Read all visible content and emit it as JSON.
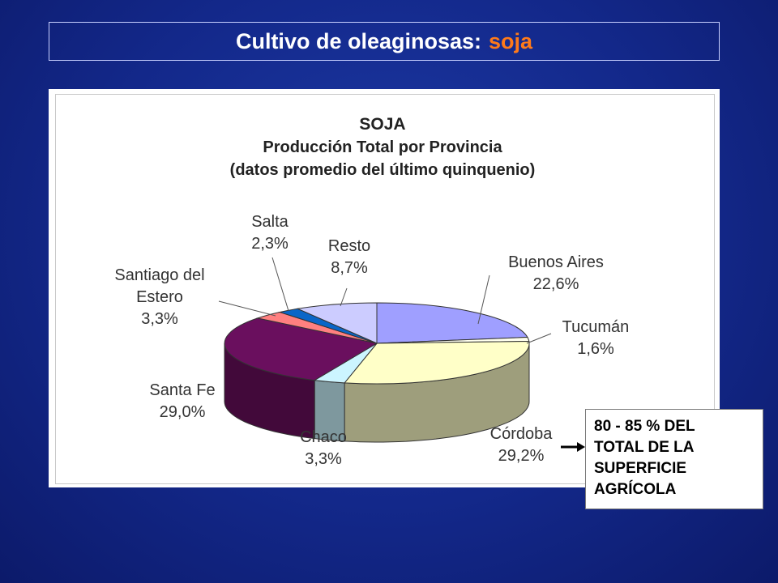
{
  "slide": {
    "title_main": "Cultivo de oleaginosas:",
    "title_accent": "soja",
    "accent_color": "#ff7a1a"
  },
  "chart_data": {
    "type": "pie",
    "title": "SOJA",
    "subtitle": "Producción Total por Provincia",
    "subtitle2": "(datos promedio del último quinquenio)",
    "slices": [
      {
        "label": "Buenos Aires",
        "value": 22.6,
        "value_label": "22,6%",
        "color": "#9f9fff"
      },
      {
        "label": "Tucumán",
        "value": 1.6,
        "value_label": "1,6%",
        "color": "#ffffee"
      },
      {
        "label": "Córdoba",
        "value": 29.2,
        "value_label": "29,2%",
        "color": "#ffffc8"
      },
      {
        "label": "Chaco",
        "value": 3.3,
        "value_label": "3,3%",
        "color": "#ccf5ff"
      },
      {
        "label": "Santa Fe",
        "value": 29.0,
        "value_label": "29,0%",
        "color": "#6a0f5e"
      },
      {
        "label": "Santiago del Estero",
        "value": 3.3,
        "value_label": "3,3%",
        "color": "#ff8080"
      },
      {
        "label": "Salta",
        "value": 2.3,
        "value_label": "2,3%",
        "color": "#0a66c8"
      },
      {
        "label": "Resto",
        "value": 8.7,
        "value_label": "8,7%",
        "color": "#ccccff"
      }
    ],
    "legend": "none"
  },
  "note": {
    "lines": [
      "80 - 85 % DEL",
      "TOTAL DE LA",
      "SUPERFICIE",
      "AGRÍCOLA"
    ]
  }
}
